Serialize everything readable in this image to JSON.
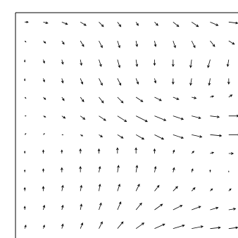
{
  "chart_data": {
    "type": "quiver",
    "color": "#000000",
    "x": [
      0,
      1,
      2,
      3,
      4,
      5,
      6,
      7,
      8,
      9,
      10,
      11
    ],
    "y": [
      0,
      1,
      2,
      3,
      4,
      5,
      6,
      7,
      8,
      9,
      10,
      11
    ],
    "xlim": [
      -0.5,
      11.5
    ],
    "ylim": [
      -0.5,
      11.5
    ],
    "u": [
      [
        0.1,
        0.1,
        0.1,
        0.2,
        0.3,
        0.5,
        0.7,
        0.9,
        1.0,
        1.0,
        0.9,
        0.8
      ],
      [
        0,
        0.1,
        0.1,
        0.1,
        0.2,
        0.3,
        0.5,
        0.7,
        0.8,
        0.8,
        0.7,
        0.6
      ],
      [
        0,
        0,
        0.1,
        0.1,
        0.1,
        0.2,
        0.3,
        0.4,
        0.4,
        0.3,
        0.2,
        0.2
      ],
      [
        0,
        0,
        0,
        0,
        0.1,
        0.1,
        0.1,
        0.1,
        0.1,
        0.1,
        0,
        0
      ],
      [
        0,
        0,
        0,
        0,
        0,
        0,
        0,
        0,
        0.1,
        0.2,
        0.3,
        0.4
      ],
      [
        0.1,
        0.1,
        0.1,
        0.2,
        0.3,
        0.5,
        0.7,
        0.8,
        0.9,
        0.9,
        1.0,
        1.0
      ],
      [
        0.1,
        0.2,
        0.3,
        0.4,
        0.6,
        0.8,
        1.0,
        1.0,
        0.9,
        0.8,
        0.8,
        0.9
      ],
      [
        0.1,
        0.2,
        0.2,
        0.3,
        0.4,
        0.5,
        0.6,
        0.6,
        0.5,
        0.4,
        0.3,
        0.3
      ],
      [
        0,
        0.1,
        0.1,
        0.2,
        0.3,
        0.3,
        0.2,
        0.1,
        0,
        -0.1,
        -0.1,
        0
      ],
      [
        0,
        0.1,
        0.1,
        0.1,
        0.2,
        0.2,
        0.1,
        0,
        0,
        -0.1,
        -0.2,
        -0.1
      ],
      [
        0.1,
        0.2,
        0.2,
        0.3,
        0.3,
        0.2,
        0.1,
        0.1,
        0.2,
        0.3,
        0.4,
        0.5
      ],
      [
        0.3,
        0.4,
        0.5,
        0.5,
        0.4,
        0.3,
        0.2,
        0.3,
        0.5,
        0.6,
        0.7,
        0.8
      ]
    ],
    "v": [
      [
        0.3,
        0.3,
        0.4,
        0.5,
        0.6,
        0.6,
        0.5,
        0.4,
        0.3,
        0.2,
        0.1,
        0.1
      ],
      [
        0.3,
        0.4,
        0.4,
        0.5,
        0.6,
        0.7,
        0.6,
        0.5,
        0.4,
        0.3,
        0.2,
        0.1
      ],
      [
        0.3,
        0.4,
        0.5,
        0.5,
        0.6,
        0.6,
        0.6,
        0.5,
        0.4,
        0.3,
        0.2,
        0.2
      ],
      [
        0.2,
        0.3,
        0.4,
        0.5,
        0.5,
        0.6,
        0.6,
        0.5,
        0.4,
        0.3,
        0.2,
        0.1
      ],
      [
        0.2,
        0.3,
        0.3,
        0.4,
        0.4,
        0.5,
        0.5,
        0.4,
        0.3,
        0.2,
        0.1,
        0
      ],
      [
        0.1,
        0.1,
        0,
        -0.1,
        -0.2,
        -0.3,
        -0.4,
        -0.4,
        -0.3,
        -0.2,
        -0.1,
        0
      ],
      [
        0,
        -0.1,
        -0.2,
        -0.3,
        -0.4,
        -0.5,
        -0.5,
        -0.4,
        -0.3,
        -0.2,
        -0.1,
        0
      ],
      [
        -0.1,
        -0.2,
        -0.3,
        -0.4,
        -0.5,
        -0.5,
        -0.4,
        -0.3,
        -0.2,
        -0.1,
        0.1,
        0.2
      ],
      [
        -0.2,
        -0.3,
        -0.4,
        -0.5,
        -0.6,
        -0.6,
        -0.5,
        -0.4,
        -0.5,
        -0.6,
        -0.6,
        -0.5
      ],
      [
        -0.2,
        -0.3,
        -0.4,
        -0.5,
        -0.6,
        -0.7,
        -0.6,
        -0.5,
        -0.6,
        -0.7,
        -0.7,
        -0.6
      ],
      [
        -0.1,
        -0.2,
        -0.3,
        -0.5,
        -0.6,
        -0.6,
        -0.5,
        -0.5,
        -0.6,
        -0.6,
        -0.5,
        -0.3
      ],
      [
        0,
        -0.1,
        -0.2,
        -0.3,
        -0.4,
        -0.4,
        -0.3,
        -0.3,
        -0.4,
        -0.4,
        -0.3,
        -0.1
      ]
    ]
  }
}
